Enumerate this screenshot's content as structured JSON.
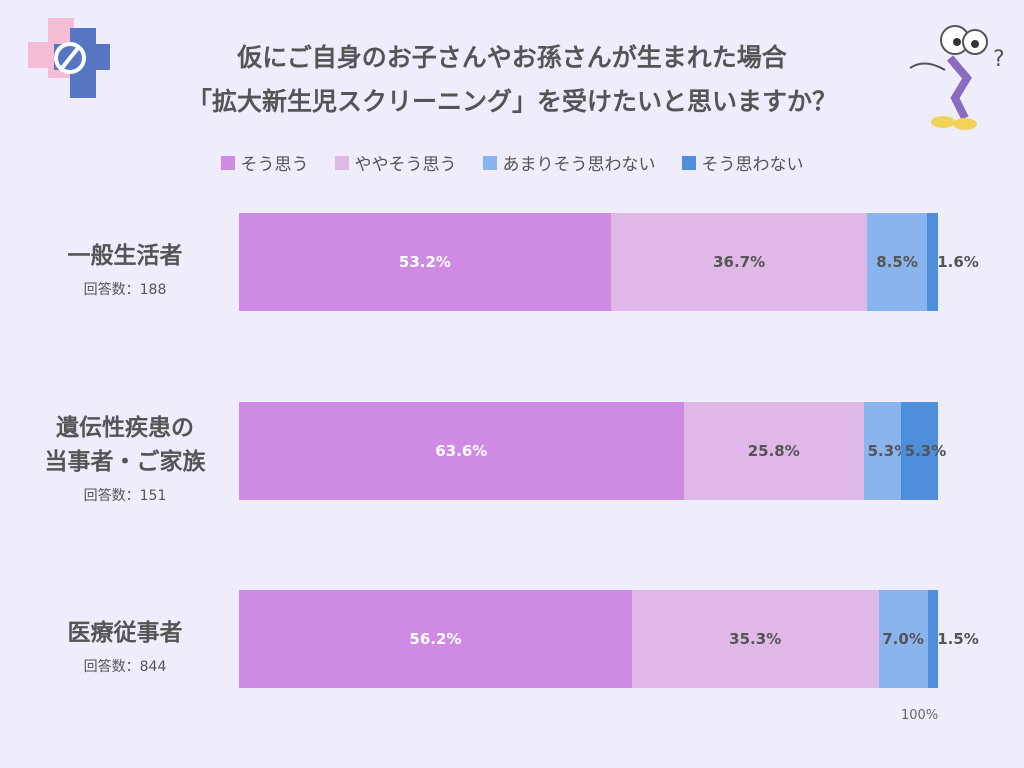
{
  "chart_data": {
    "type": "stacked-bar-horizontal",
    "title": [
      "仮にご自身のお子さんやお孫さんが生まれた場合",
      "「拡大新生児スクリーニング」を受けたいと思いますか？"
    ],
    "categories": [
      "一般生活者",
      "遺伝性疾患の\n当事者・ご家族",
      "医療従事者"
    ],
    "respondents": [
      "回答数：188",
      "回答数：151",
      "回答数：844"
    ],
    "series": [
      {
        "name": "そう思う",
        "color": "#cf8ae3",
        "values": [
          53.2,
          63.6,
          56.2
        ],
        "value_labels": [
          "53.2%",
          "63.6%",
          "56.2%"
        ]
      },
      {
        "name": "ややそう思う",
        "color": "#dfb8e8",
        "values": [
          36.7,
          25.8,
          35.3
        ],
        "value_labels": [
          "36.7%",
          "25.8%",
          "35.3%"
        ]
      },
      {
        "name": "あまりそう思わない",
        "color": "#8ab4ee",
        "values": [
          8.5,
          5.3,
          7.0
        ],
        "value_labels": [
          "8.5%",
          "5.3%",
          "7.0%"
        ]
      },
      {
        "name": "そう思わない",
        "color": "#4e8fdc",
        "values": [
          1.6,
          5.3,
          1.5
        ],
        "value_labels": [
          "1.6%",
          "5.3%",
          "1.5%"
        ]
      }
    ],
    "xlim": [
      0,
      100
    ],
    "xticks": [
      {
        "value": 100,
        "label": "100%"
      }
    ]
  }
}
